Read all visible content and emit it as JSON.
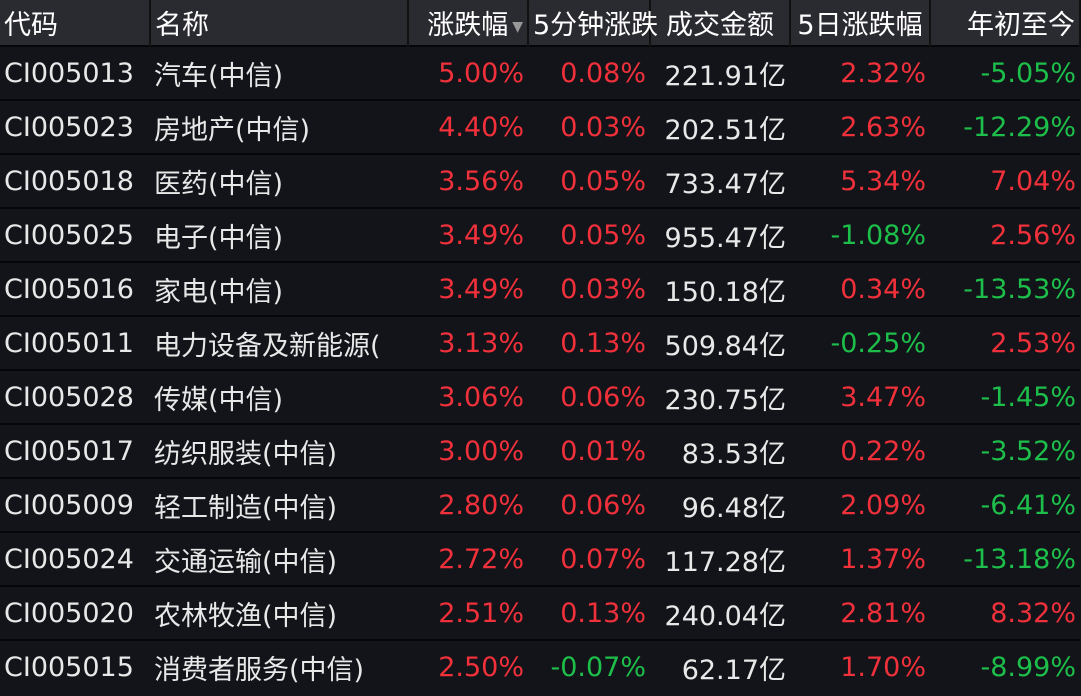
{
  "colors": {
    "up": "#f0303a",
    "down": "#1dbf4a",
    "header_bg": "#2a2a31",
    "row_bg": "#121419"
  },
  "headers": [
    "代码",
    "名称",
    "涨跌幅",
    "5分钟涨跌",
    "成交金额",
    "5日涨跌幅",
    "年初至今"
  ],
  "sort": {
    "column": "涨跌幅",
    "direction": "desc",
    "icon": "triangle-down-icon"
  },
  "rows": [
    [
      "CI005013",
      "汽车(中信)",
      "5.00%",
      "0.08%",
      "221.91亿",
      "2.32%",
      "-5.05%"
    ],
    [
      "CI005023",
      "房地产(中信)",
      "4.40%",
      "0.03%",
      "202.51亿",
      "2.63%",
      "-12.29%"
    ],
    [
      "CI005018",
      "医药(中信)",
      "3.56%",
      "0.05%",
      "733.47亿",
      "5.34%",
      "7.04%"
    ],
    [
      "CI005025",
      "电子(中信)",
      "3.49%",
      "0.05%",
      "955.47亿",
      "-1.08%",
      "2.56%"
    ],
    [
      "CI005016",
      "家电(中信)",
      "3.49%",
      "0.03%",
      "150.18亿",
      "0.34%",
      "-13.53%"
    ],
    [
      "CI005011",
      "电力设备及新能源(",
      "3.13%",
      "0.13%",
      "509.84亿",
      "-0.25%",
      "2.53%"
    ],
    [
      "CI005028",
      "传媒(中信)",
      "3.06%",
      "0.06%",
      "230.75亿",
      "3.47%",
      "-1.45%"
    ],
    [
      "CI005017",
      "纺织服装(中信)",
      "3.00%",
      "0.01%",
      "83.53亿",
      "0.22%",
      "-3.52%"
    ],
    [
      "CI005009",
      "轻工制造(中信)",
      "2.80%",
      "0.06%",
      "96.48亿",
      "2.09%",
      "-6.41%"
    ],
    [
      "CI005024",
      "交通运输(中信)",
      "2.72%",
      "0.07%",
      "117.28亿",
      "1.37%",
      "-13.18%"
    ],
    [
      "CI005020",
      "农林牧渔(中信)",
      "2.51%",
      "0.13%",
      "240.04亿",
      "2.81%",
      "8.32%"
    ],
    [
      "CI005015",
      "消费者服务(中信)",
      "2.50%",
      "-0.07%",
      "62.17亿",
      "1.70%",
      "-8.99%"
    ]
  ]
}
